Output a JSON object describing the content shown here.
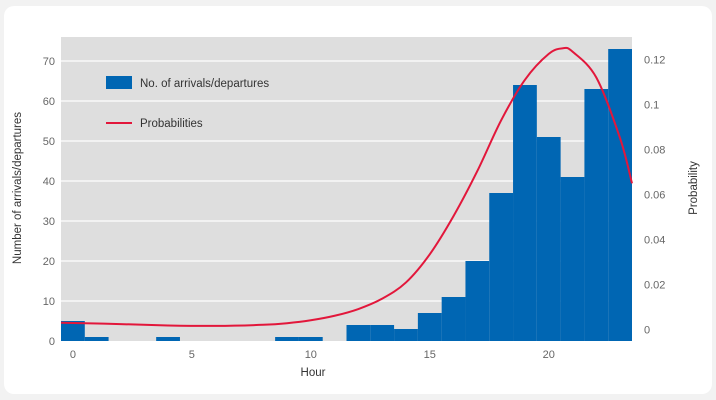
{
  "chart_data": {
    "type": "bar",
    "xlabel": "Hour",
    "ylabel": "Number of arrivals/departures",
    "y2label": "Probability",
    "xlim": [
      -0.5,
      23.5
    ],
    "ylim": [
      0,
      76
    ],
    "y2lim": [
      -0.005,
      0.13
    ],
    "xticks": [
      0,
      5,
      10,
      15,
      20
    ],
    "yticks": [
      0,
      10,
      20,
      30,
      40,
      50,
      60,
      70
    ],
    "y2ticks": [
      0,
      0.02,
      0.04,
      0.06,
      0.08,
      0.1,
      0.12
    ],
    "y2ticklabels": [
      "0",
      "0.02",
      "0.04",
      "0.06",
      "0.08",
      "0.1",
      "0.12"
    ],
    "grid": true,
    "legend_position": "top-left",
    "bar_series": {
      "name": "No. of arrivals/departures",
      "color": "#0066b3",
      "x": [
        0,
        1,
        2,
        3,
        4,
        5,
        6,
        7,
        8,
        9,
        10,
        11,
        12,
        13,
        14,
        15,
        16,
        17,
        18,
        19,
        20,
        21,
        22,
        23
      ],
      "values": [
        5,
        1,
        0,
        0,
        1,
        0,
        0,
        0,
        0,
        1,
        1,
        0,
        4,
        4,
        3,
        7,
        11,
        20,
        37,
        64,
        51,
        41,
        63,
        73
      ]
    },
    "line_series": {
      "name": "Probabilities",
      "color": "#e2173b",
      "x": [
        -0.5,
        0,
        2,
        4,
        6,
        8,
        9,
        10,
        11,
        12,
        13,
        14,
        15,
        16,
        17,
        18,
        19,
        20,
        20.6,
        21,
        22,
        23,
        23.5
      ],
      "values": [
        0.0031,
        0.003,
        0.0025,
        0.0019,
        0.0017,
        0.0022,
        0.0029,
        0.0042,
        0.0062,
        0.0092,
        0.0138,
        0.021,
        0.0335,
        0.0505,
        0.0705,
        0.093,
        0.111,
        0.1225,
        0.125,
        0.1235,
        0.112,
        0.085,
        0.065
      ]
    }
  }
}
